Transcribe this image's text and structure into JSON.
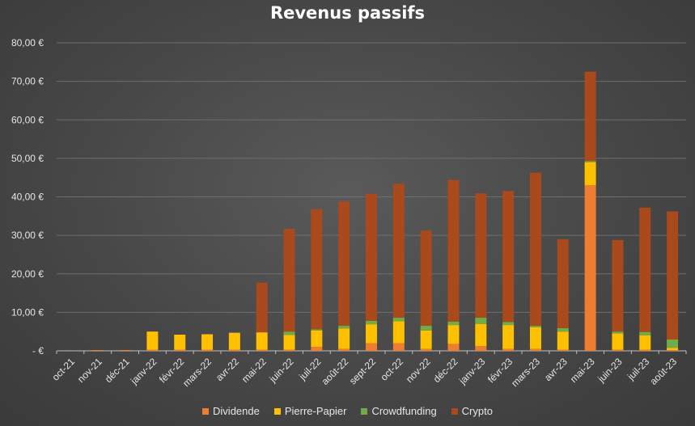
{
  "chart_data": {
    "type": "bar",
    "stacked": true,
    "title": "Revenus passifs",
    "xlabel": "",
    "ylabel": "",
    "ylim": [
      0,
      80
    ],
    "y_ticks": [
      "-  €",
      "10,00 €",
      "20,00 €",
      "30,00 €",
      "40,00 €",
      "50,00 €",
      "60,00 €",
      "70,00 €",
      "80,00 €"
    ],
    "y_tick_values": [
      0,
      10,
      20,
      30,
      40,
      50,
      60,
      70,
      80
    ],
    "grid": true,
    "legend_position": "bottom",
    "categories": [
      "oct-21",
      "nov-21",
      "déc-21",
      "janv-22",
      "févr-22",
      "mars-22",
      "avr-22",
      "mai-22",
      "juin-22",
      "juil-22",
      "août-22",
      "sept-22",
      "oct-22",
      "nov-22",
      "déc-22",
      "janv-23",
      "févr-23",
      "mars-23",
      "avr-23",
      "mai-23",
      "juin-23",
      "juil-23",
      "août-23"
    ],
    "series": [
      {
        "name": "Dividende",
        "color": "#ed7d31",
        "values": [
          0,
          0.2,
          0.2,
          0.3,
          0.3,
          0.3,
          0.3,
          0.3,
          0.3,
          1.0,
          0.5,
          2.0,
          2.0,
          0.5,
          1.8,
          1.2,
          0.5,
          0.5,
          0.3,
          43.0,
          0.3,
          0.3,
          0.2
        ]
      },
      {
        "name": "Pierre-Papier",
        "color": "#ffc000",
        "values": [
          0,
          0,
          0,
          4.7,
          3.9,
          4.0,
          4.4,
          4.5,
          3.8,
          4.3,
          5.3,
          4.9,
          5.7,
          4.8,
          4.9,
          5.8,
          6.2,
          5.6,
          4.7,
          6.0,
          4.2,
          3.7,
          0.6
        ]
      },
      {
        "name": "Crowdfunding",
        "color": "#70ad47",
        "values": [
          0,
          0,
          0,
          0,
          0,
          0,
          0,
          0,
          0.9,
          0.3,
          0.7,
          0.9,
          0.9,
          1.2,
          0.9,
          1.6,
          0.8,
          0.4,
          0.9,
          0.3,
          0.5,
          0.9,
          2.2
        ]
      },
      {
        "name": "Crypto",
        "color": "#a9491c",
        "values": [
          0,
          0,
          0,
          0,
          0,
          0,
          0,
          12.9,
          26.7,
          31.2,
          32.3,
          33.0,
          34.8,
          24.7,
          36.8,
          32.3,
          34.0,
          39.8,
          23.1,
          23.2,
          23.8,
          32.3,
          33.2
        ]
      }
    ]
  }
}
